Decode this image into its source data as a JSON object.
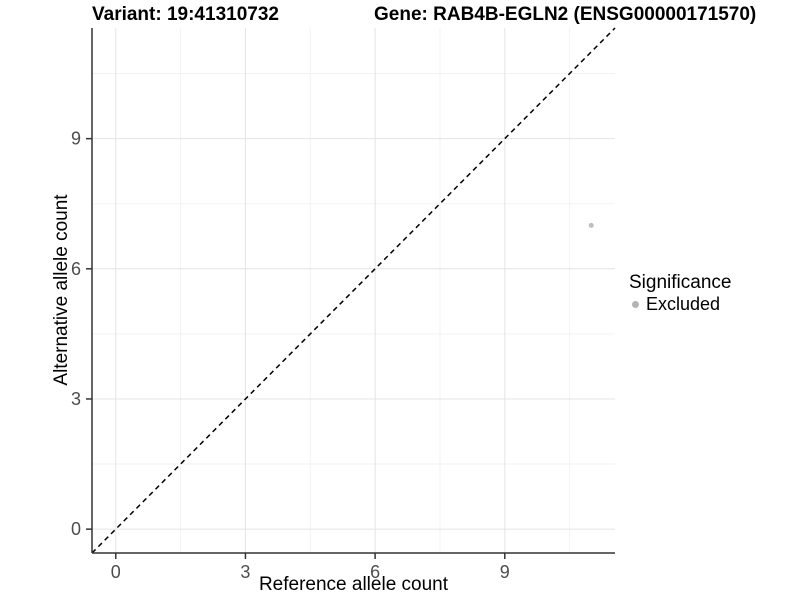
{
  "header": {
    "variant_title": "Variant: 19:41310732",
    "gene_title": "Gene: RAB4B-EGLN2 (ENSG00000171570)"
  },
  "chart_data": {
    "type": "scatter",
    "xlabel": "Reference allele count",
    "ylabel": "Alternative allele count",
    "xlim": [
      -0.55,
      11.55
    ],
    "ylim": [
      -0.55,
      11.55
    ],
    "x_ticks": [
      0,
      3,
      6,
      9
    ],
    "x_tick_labels": [
      "0",
      "3",
      "6",
      "9"
    ],
    "y_ticks": [
      0,
      3,
      6,
      9
    ],
    "y_tick_labels": [
      "0",
      "3",
      "6",
      "9"
    ],
    "x_minor": [
      1.5,
      4.5,
      7.5,
      10.5
    ],
    "y_minor": [
      1.5,
      4.5,
      7.5,
      10.5
    ],
    "grid": "major+minor",
    "series": [
      {
        "name": "Excluded",
        "color": "#BEBEBE",
        "points": [
          {
            "x": 11,
            "y": 7
          }
        ]
      }
    ],
    "reference_line": {
      "kind": "identity y=x",
      "style": "dashed",
      "color": "#000000"
    },
    "legend": {
      "title": "Significance",
      "position": "right",
      "items": [
        {
          "label": "Excluded",
          "color": "#B4B4B4"
        }
      ]
    }
  },
  "colors": {
    "axis": "#333333",
    "tick_label": "#4D4D4D",
    "grid_major": "#E4E4E4",
    "grid_minor": "#F2F2F2",
    "background": "#FFFFFF"
  }
}
